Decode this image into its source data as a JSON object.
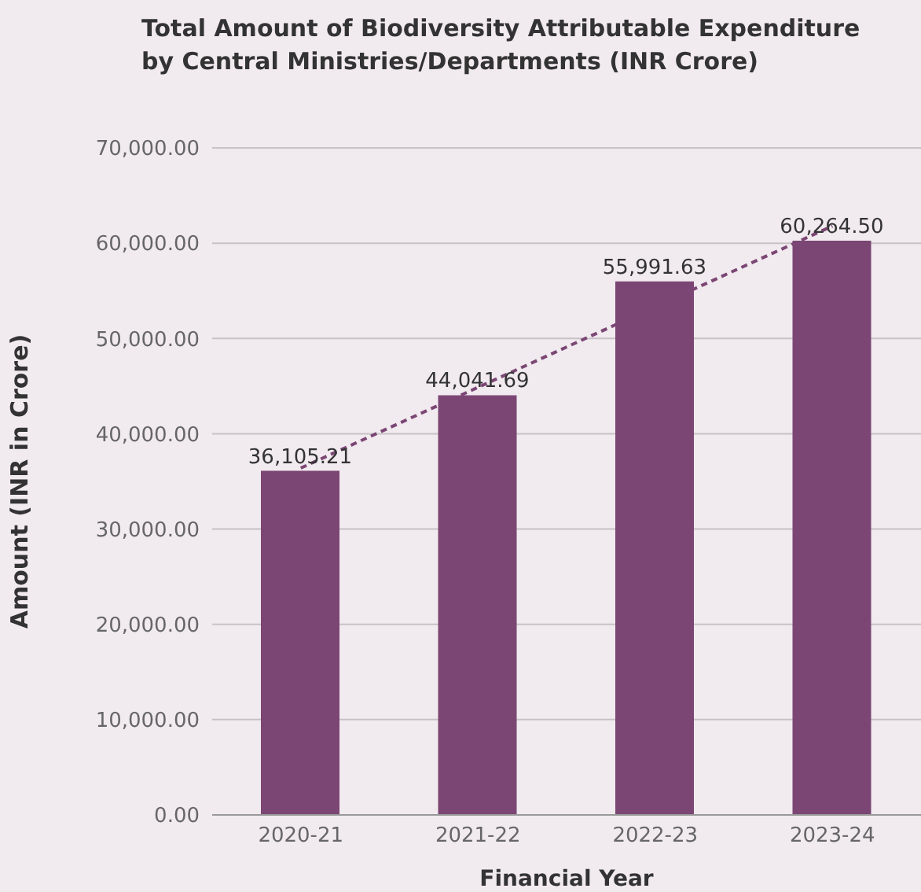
{
  "chart_data": {
    "type": "bar",
    "title": "Total Amount of Biodiversity Attributable Expenditure by Central Ministries/Departments (INR Crore)",
    "xlabel": "Financial Year",
    "ylabel": "Amount (INR in Crore)",
    "categories": [
      "2020-21",
      "2021-22",
      "2022-23",
      "2023-24"
    ],
    "series": [
      {
        "color": "#7b4674",
        "values": [
          36105.21,
          44041.69,
          55991.63,
          60264.5
        ],
        "value_labels": [
          "36,105.21",
          "44,041.69",
          "55,991.63",
          "60,264.50"
        ]
      },
      {
        "type": "line",
        "x": [
          "2020-21",
          "2023-24"
        ],
        "values": [
          36400,
          61800
        ],
        "color": "#7b4674",
        "line_style": "dashed"
      }
    ],
    "ylim": [
      0,
      70000
    ],
    "yticks": [
      {
        "value": 0,
        "label": "0.00"
      },
      {
        "value": 10000,
        "label": "10,000.00"
      },
      {
        "value": 20000,
        "label": "20,000.00"
      },
      {
        "value": 30000,
        "label": "30,000.00"
      },
      {
        "value": 40000,
        "label": "40,000.00"
      },
      {
        "value": 50000,
        "label": "50,000.00"
      },
      {
        "value": 60000,
        "label": "60,000.00"
      },
      {
        "value": 70000,
        "label": "70,000.00"
      }
    ],
    "grid": "y"
  }
}
